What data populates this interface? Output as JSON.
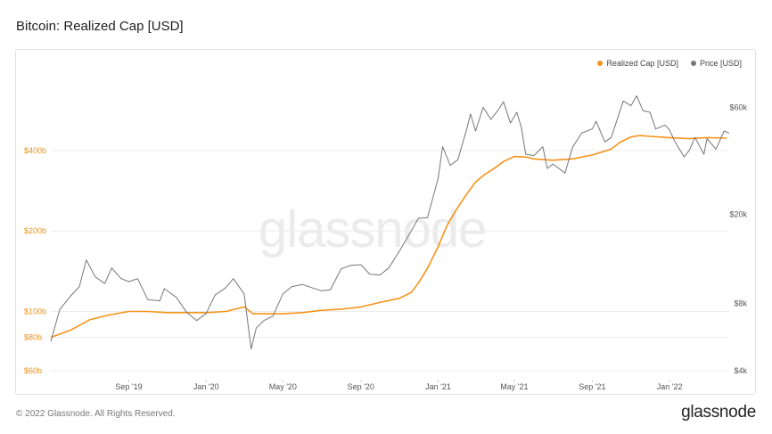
{
  "header": {
    "title": "Bitcoin: Realized Cap [USD]"
  },
  "watermark": "glassnode",
  "footer": {
    "copyright": "© 2022 Glassnode. All Rights Reserved.",
    "logo": "glassnode"
  },
  "colors": {
    "realized_cap": "#f7931a",
    "price": "#777777",
    "left_axis_labels": "#e8901f",
    "grid": "#ececec"
  },
  "chart_data": {
    "type": "line",
    "title": "Bitcoin: Realized Cap [USD]",
    "legend": {
      "position": "top-right",
      "entries": [
        "Realized Cap [USD]",
        "Price [USD]"
      ]
    },
    "grid": true,
    "x_ticks": [
      {
        "label": "Sep '19",
        "date": "2019-09-01"
      },
      {
        "label": "Jan '20",
        "date": "2020-01-01"
      },
      {
        "label": "May '20",
        "date": "2020-05-01"
      },
      {
        "label": "Sep '20",
        "date": "2020-09-01"
      },
      {
        "label": "Jan '21",
        "date": "2021-01-01"
      },
      {
        "label": "May '21",
        "date": "2021-05-01"
      },
      {
        "label": "Sep '21",
        "date": "2021-09-01"
      },
      {
        "label": "Jan '22",
        "date": "2022-01-01"
      }
    ],
    "x_range": [
      "2019-05-01",
      "2022-04-05"
    ],
    "y_left": {
      "scale": "log",
      "range": [
        60000000000,
        700000000000
      ],
      "ticks": [
        {
          "label": "$60b",
          "value": 60000000000
        },
        {
          "label": "$80b",
          "value": 80000000000
        },
        {
          "label": "$100b",
          "value": 100000000000
        },
        {
          "label": "$200b",
          "value": 200000000000
        },
        {
          "label": "$400b",
          "value": 400000000000
        }
      ]
    },
    "y_right": {
      "scale": "log",
      "range": [
        4000,
        75000
      ],
      "ticks": [
        {
          "label": "$4k",
          "value": 4000
        },
        {
          "label": "$8k",
          "value": 8000
        },
        {
          "label": "$20k",
          "value": 20000
        },
        {
          "label": "$60k",
          "value": 60000
        }
      ]
    },
    "series": [
      {
        "name": "Realized Cap [USD]",
        "axis": "left",
        "color": "#f7931a",
        "x": [
          "2019-05-01",
          "2019-06-01",
          "2019-07-01",
          "2019-08-01",
          "2019-09-01",
          "2019-10-01",
          "2019-11-01",
          "2019-12-01",
          "2020-01-01",
          "2020-02-01",
          "2020-03-01",
          "2020-03-15",
          "2020-04-01",
          "2020-05-01",
          "2020-06-01",
          "2020-07-01",
          "2020-08-01",
          "2020-09-01",
          "2020-10-01",
          "2020-11-01",
          "2020-11-20",
          "2020-12-01",
          "2020-12-15",
          "2021-01-01",
          "2021-01-15",
          "2021-02-01",
          "2021-02-15",
          "2021-03-01",
          "2021-03-15",
          "2021-04-01",
          "2021-04-15",
          "2021-05-01",
          "2021-05-20",
          "2021-06-01",
          "2021-07-01",
          "2021-08-01",
          "2021-09-01",
          "2021-10-01",
          "2021-10-15",
          "2021-11-01",
          "2021-11-15",
          "2021-12-01",
          "2022-01-01",
          "2022-02-01",
          "2022-03-01",
          "2022-04-01"
        ],
        "values": [
          80,
          85,
          93,
          97,
          100,
          100,
          99,
          99,
          99,
          100,
          104,
          98,
          98,
          98,
          99,
          101,
          102,
          104,
          108,
          112,
          118,
          128,
          145,
          175,
          210,
          245,
          275,
          305,
          325,
          345,
          365,
          380,
          378,
          372,
          368,
          372,
          385,
          405,
          430,
          450,
          455,
          452,
          447,
          443,
          447,
          445
        ],
        "unit_multiplier": 1000000000
      },
      {
        "name": "Price [USD]",
        "axis": "right",
        "color": "#777777",
        "x": [
          "2019-05-01",
          "2019-05-15",
          "2019-06-01",
          "2019-06-15",
          "2019-06-26",
          "2019-07-10",
          "2019-07-25",
          "2019-08-05",
          "2019-08-20",
          "2019-09-01",
          "2019-09-15",
          "2019-10-01",
          "2019-10-20",
          "2019-10-27",
          "2019-11-15",
          "2019-12-01",
          "2019-12-17",
          "2020-01-01",
          "2020-01-15",
          "2020-02-01",
          "2020-02-13",
          "2020-03-01",
          "2020-03-12",
          "2020-03-20",
          "2020-04-01",
          "2020-04-15",
          "2020-05-01",
          "2020-05-15",
          "2020-06-01",
          "2020-06-15",
          "2020-07-01",
          "2020-07-15",
          "2020-08-01",
          "2020-08-15",
          "2020-09-01",
          "2020-09-15",
          "2020-10-01",
          "2020-10-15",
          "2020-11-01",
          "2020-11-15",
          "2020-12-01",
          "2020-12-15",
          "2021-01-01",
          "2021-01-08",
          "2021-01-20",
          "2021-02-01",
          "2021-02-15",
          "2021-02-21",
          "2021-03-01",
          "2021-03-13",
          "2021-03-25",
          "2021-04-05",
          "2021-04-14",
          "2021-04-25",
          "2021-05-05",
          "2021-05-12",
          "2021-05-19",
          "2021-06-01",
          "2021-06-15",
          "2021-06-22",
          "2021-07-01",
          "2021-07-20",
          "2021-08-01",
          "2021-08-15",
          "2021-09-01",
          "2021-09-07",
          "2021-09-21",
          "2021-10-01",
          "2021-10-20",
          "2021-11-01",
          "2021-11-10",
          "2021-11-20",
          "2021-12-01",
          "2021-12-10",
          "2021-12-25",
          "2022-01-01",
          "2022-01-10",
          "2022-01-24",
          "2022-02-01",
          "2022-02-10",
          "2022-02-24",
          "2022-03-01",
          "2022-03-15",
          "2022-03-28",
          "2022-04-05"
        ],
        "values": [
          5400,
          7500,
          8600,
          9500,
          12500,
          10500,
          9800,
          11500,
          10300,
          10000,
          10300,
          8300,
          8200,
          9300,
          8500,
          7300,
          6700,
          7200,
          8700,
          9400,
          10300,
          8800,
          5000,
          6200,
          6700,
          7000,
          8800,
          9500,
          9700,
          9400,
          9100,
          9200,
          11400,
          11800,
          11900,
          10800,
          10700,
          11500,
          13700,
          16000,
          19200,
          19300,
          29000,
          40000,
          33000,
          35000,
          48000,
          56000,
          47000,
          60000,
          53000,
          58000,
          63500,
          51000,
          57000,
          49000,
          37000,
          36500,
          40000,
          32000,
          33500,
          30500,
          39800,
          46000,
          48000,
          52000,
          42000,
          44000,
          64000,
          61000,
          67500,
          58000,
          57000,
          48000,
          50000,
          47500,
          41800,
          36000,
          38500,
          44000,
          37000,
          43500,
          39000,
          47000,
          46000
        ],
        "unit": "USD"
      }
    ]
  }
}
